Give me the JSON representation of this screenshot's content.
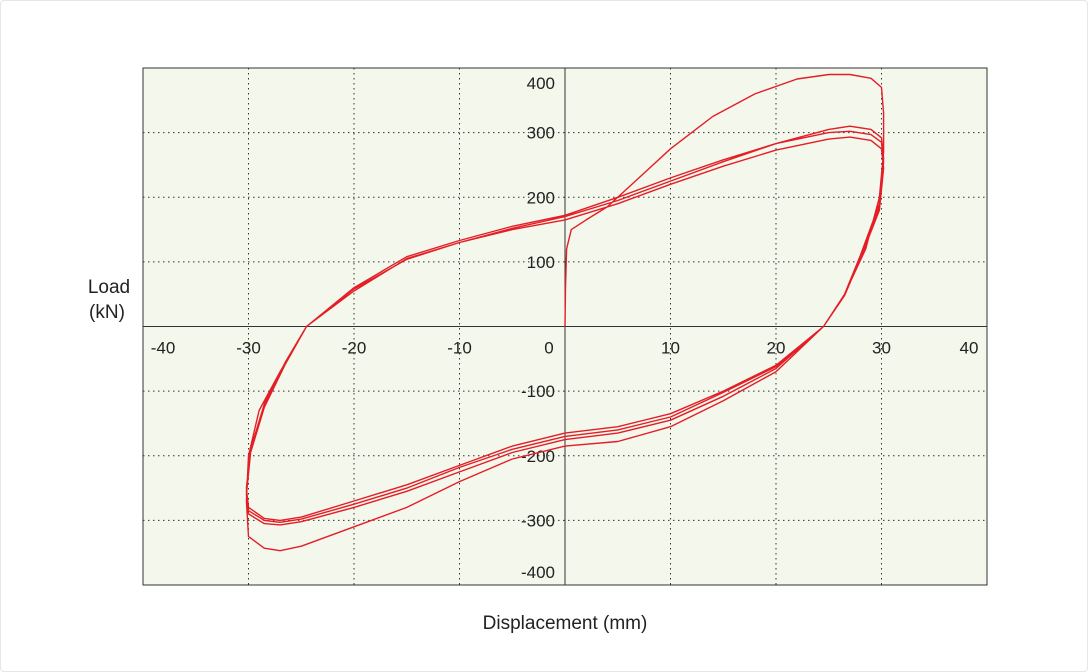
{
  "chart_data": {
    "type": "line",
    "title": "",
    "xlabel": "Displacement (mm)",
    "ylabel_lines": [
      "Load",
      "(kN)"
    ],
    "xlim": [
      -40,
      40
    ],
    "ylim": [
      -400,
      400
    ],
    "grid": true,
    "plot_background": "#f4f7ec",
    "line_color": "#e41e26",
    "x_ticks": [
      {
        "value": -40,
        "label": "-40"
      },
      {
        "value": -30,
        "label": "-30"
      },
      {
        "value": -20,
        "label": "-20"
      },
      {
        "value": -10,
        "label": "-10"
      },
      {
        "value": 0,
        "label": "0"
      },
      {
        "value": 10,
        "label": "10"
      },
      {
        "value": 20,
        "label": "20"
      },
      {
        "value": 30,
        "label": "30"
      },
      {
        "value": 40,
        "label": "40"
      }
    ],
    "y_ticks": [
      {
        "value": 400,
        "label": "400"
      },
      {
        "value": 300,
        "label": "300"
      },
      {
        "value": 200,
        "label": "200"
      },
      {
        "value": 100,
        "label": "100"
      },
      {
        "value": -100,
        "label": "-100"
      },
      {
        "value": -200,
        "label": "-200"
      },
      {
        "value": -300,
        "label": "-300"
      },
      {
        "value": -400,
        "label": "-400"
      }
    ],
    "series": [
      {
        "values": [
          [
            0,
            0
          ],
          [
            0.05,
            60
          ],
          [
            0.15,
            120
          ],
          [
            0.6,
            150
          ],
          [
            2,
            165
          ],
          [
            4,
            185
          ],
          [
            7,
            230
          ],
          [
            10,
            275
          ],
          [
            14,
            325
          ],
          [
            18,
            360
          ],
          [
            22,
            383
          ],
          [
            25,
            390
          ],
          [
            27,
            390
          ],
          [
            29,
            384
          ],
          [
            30,
            370
          ],
          [
            30.2,
            330
          ],
          [
            30.2,
            270
          ],
          [
            29.8,
            200
          ],
          [
            28.5,
            120
          ],
          [
            26.5,
            50
          ],
          [
            24.5,
            0
          ],
          [
            20,
            -70
          ],
          [
            15,
            -115
          ],
          [
            10,
            -155
          ],
          [
            5,
            -178
          ],
          [
            0,
            -185
          ],
          [
            -5,
            -205
          ],
          [
            -10,
            -240
          ],
          [
            -15,
            -280
          ],
          [
            -20,
            -310
          ],
          [
            -25,
            -340
          ],
          [
            -27,
            -347
          ],
          [
            -28.5,
            -343
          ],
          [
            -30,
            -325
          ],
          [
            -30.2,
            -270
          ],
          [
            -30,
            -200
          ],
          [
            -29,
            -130
          ],
          [
            -27,
            -70
          ],
          [
            -24.5,
            0
          ],
          [
            -20,
            55
          ],
          [
            -15,
            105
          ],
          [
            -10,
            130
          ],
          [
            -5,
            152
          ],
          [
            0,
            170
          ],
          [
            5,
            195
          ],
          [
            10,
            225
          ],
          [
            15,
            255
          ],
          [
            20,
            283
          ],
          [
            25,
            305
          ],
          [
            27,
            310
          ],
          [
            29,
            305
          ],
          [
            30,
            292
          ],
          [
            30.2,
            260
          ],
          [
            29.8,
            190
          ],
          [
            28,
            110
          ],
          [
            26.5,
            50
          ],
          [
            24.5,
            0
          ],
          [
            20,
            -60
          ],
          [
            15,
            -100
          ],
          [
            10,
            -135
          ],
          [
            5,
            -155
          ],
          [
            0,
            -165
          ],
          [
            -5,
            -185
          ],
          [
            -10,
            -215
          ],
          [
            -15,
            -245
          ],
          [
            -20,
            -270
          ],
          [
            -25,
            -295
          ],
          [
            -27,
            -300
          ],
          [
            -28.5,
            -297
          ],
          [
            -30,
            -280
          ],
          [
            -30.2,
            -250
          ],
          [
            -29.8,
            -190
          ],
          [
            -28.5,
            -120
          ],
          [
            -26.5,
            -55
          ],
          [
            -24.5,
            0
          ],
          [
            -20,
            60
          ],
          [
            -15,
            108
          ],
          [
            -10,
            133
          ],
          [
            -5,
            155
          ],
          [
            0,
            172
          ],
          [
            5,
            200
          ],
          [
            10,
            230
          ],
          [
            15,
            258
          ],
          [
            20,
            283
          ],
          [
            25,
            300
          ],
          [
            27,
            302
          ],
          [
            29,
            297
          ],
          [
            30,
            285
          ],
          [
            30.2,
            255
          ],
          [
            29.8,
            185
          ],
          [
            28,
            110
          ],
          [
            26.5,
            50
          ],
          [
            24.5,
            0
          ],
          [
            20,
            -62
          ],
          [
            15,
            -102
          ],
          [
            10,
            -140
          ],
          [
            5,
            -160
          ],
          [
            0,
            -170
          ],
          [
            -5,
            -190
          ],
          [
            -10,
            -218
          ],
          [
            -15,
            -250
          ],
          [
            -20,
            -275
          ],
          [
            -25,
            -298
          ],
          [
            -27,
            -303
          ],
          [
            -28.5,
            -300
          ],
          [
            -30,
            -285
          ],
          [
            -30.2,
            -255
          ],
          [
            -29.8,
            -190
          ],
          [
            -28.5,
            -120
          ],
          [
            -26.5,
            -55
          ],
          [
            -24.5,
            0
          ],
          [
            -20,
            58
          ],
          [
            -15,
            104
          ],
          [
            -10,
            130
          ],
          [
            -5,
            150
          ],
          [
            0,
            165
          ],
          [
            5,
            190
          ],
          [
            10,
            220
          ],
          [
            15,
            248
          ],
          [
            20,
            273
          ],
          [
            25,
            290
          ],
          [
            27,
            293
          ],
          [
            29,
            288
          ],
          [
            30,
            275
          ],
          [
            30.2,
            245
          ],
          [
            29.8,
            180
          ],
          [
            28,
            105
          ],
          [
            26.5,
            48
          ],
          [
            24.5,
            0
          ],
          [
            20,
            -65
          ],
          [
            15,
            -108
          ],
          [
            10,
            -145
          ],
          [
            5,
            -165
          ],
          [
            0,
            -175
          ],
          [
            -5,
            -195
          ],
          [
            -10,
            -225
          ],
          [
            -15,
            -255
          ],
          [
            -20,
            -280
          ],
          [
            -25,
            -302
          ],
          [
            -27,
            -307
          ],
          [
            -28.5,
            -305
          ],
          [
            -30,
            -290
          ],
          [
            -30.2,
            -260
          ],
          [
            -29.8,
            -195
          ],
          [
            -28.5,
            -125
          ],
          [
            -26.5,
            -58
          ],
          [
            -24.5,
            0
          ]
        ]
      }
    ]
  }
}
